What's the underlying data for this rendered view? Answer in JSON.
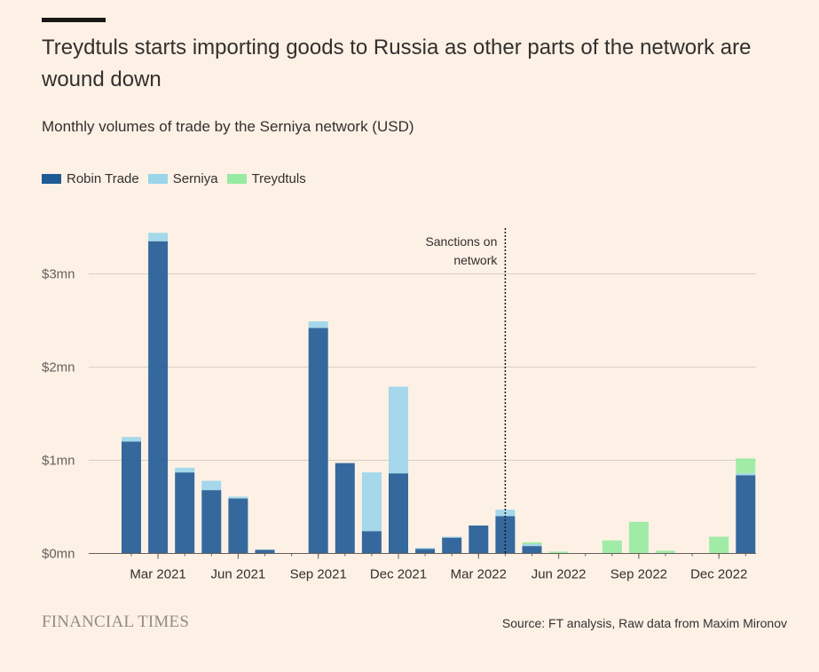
{
  "header": {
    "title": "Treydtuls starts importing goods to Russia as other parts of the network are wound down",
    "subtitle": "Monthly volumes of trade by the Serniya network (USD)"
  },
  "footer": {
    "logo": "FINANCIAL TIMES",
    "source": "Source: FT analysis, Raw data from Maxim Mironov"
  },
  "chart_data": {
    "type": "bar",
    "stacked": true,
    "series": [
      {
        "name": "Robin Trade",
        "color": "#1f5a96",
        "values": [
          1.2,
          3.35,
          0.87,
          0.68,
          0.59,
          0.04,
          0,
          2.42,
          0.97,
          0.24,
          0.86,
          0.05,
          0.17,
          0.3,
          0.4,
          0.08,
          0,
          0,
          0,
          0,
          0,
          0,
          0,
          0.84
        ]
      },
      {
        "name": "Serniya",
        "color": "#9ad5ea",
        "values": [
          0.05,
          0.09,
          0.05,
          0.1,
          0.02,
          0,
          0,
          0.07,
          0,
          0.63,
          0.93,
          0.01,
          0.01,
          0,
          0.07,
          0.02,
          0,
          0,
          0,
          0,
          0,
          0,
          0,
          0.02
        ]
      },
      {
        "name": "Treydtuls",
        "color": "#96eba0",
        "values": [
          0,
          0,
          0,
          0,
          0,
          0,
          0,
          0,
          0,
          0,
          0,
          0,
          0,
          0,
          0,
          0.02,
          0.02,
          0,
          0.14,
          0.34,
          0.03,
          0,
          0.18,
          0.16
        ]
      }
    ],
    "x_ticks": [
      "Mar 2021",
      "Jun 2021",
      "Sep 2021",
      "Dec 2021",
      "Mar 2022",
      "Jun 2022",
      "Sep 2022",
      "Dec 2022"
    ],
    "y_ticks": [
      "$0mn",
      "$1mn",
      "$2mn",
      "$3mn"
    ],
    "y_unit": "$mn",
    "ylim": [
      0,
      3.5
    ],
    "annotation": {
      "lines": [
        "Sanctions on",
        "network"
      ],
      "month_index": 14
    },
    "grid": true,
    "legend_position": "top-left"
  }
}
